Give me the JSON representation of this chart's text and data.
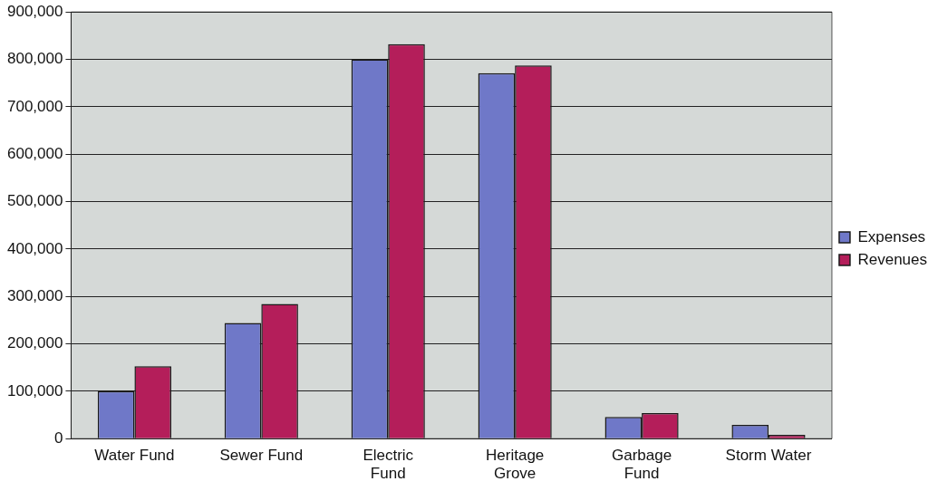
{
  "chart_data": {
    "type": "bar",
    "categories": [
      "Water Fund",
      "Sewer Fund",
      "Electric Fund",
      "Heritage Grove",
      "Garbage Fund",
      "Storm Water"
    ],
    "series": [
      {
        "name": "Expenses",
        "color": "#6f78c8",
        "values": [
          100000,
          244000,
          800000,
          771000,
          46000,
          29000
        ]
      },
      {
        "name": "Revenues",
        "color": "#b41e5a",
        "values": [
          153000,
          284000,
          832000,
          787000,
          54000,
          8000
        ]
      }
    ],
    "ylim": [
      0,
      900000
    ],
    "yticks": [
      {
        "value": 0,
        "label": "0"
      },
      {
        "value": 100000,
        "label": "100,000"
      },
      {
        "value": 200000,
        "label": "200,000"
      },
      {
        "value": 300000,
        "label": "300,000"
      },
      {
        "value": 400000,
        "label": "400,000"
      },
      {
        "value": 500000,
        "label": "500,000"
      },
      {
        "value": 600000,
        "label": "600,000"
      },
      {
        "value": 700000,
        "label": "700,000"
      },
      {
        "value": 800000,
        "label": "800,000"
      },
      {
        "value": 900000,
        "label": "900,000"
      }
    ],
    "grid": "y",
    "legend": "right"
  }
}
